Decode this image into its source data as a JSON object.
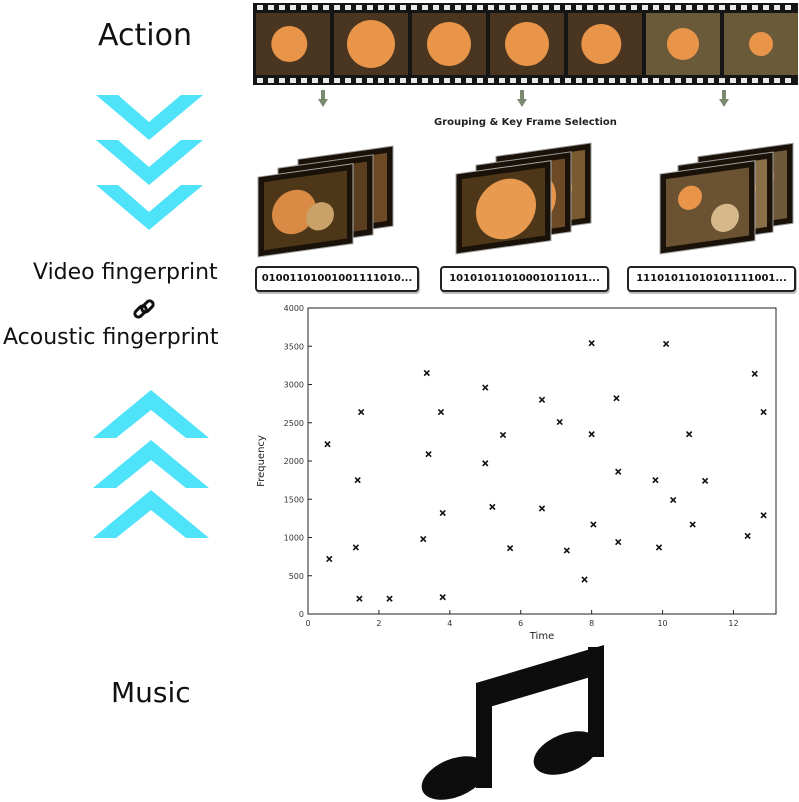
{
  "labels": {
    "action": "Action",
    "video_fingerprint": "Video fingerprint",
    "acoustic_fingerprint": "Acoustic fingerprint",
    "music": "Music"
  },
  "film": {
    "grouping_title": "Grouping & Key Frame Selection",
    "codes": [
      "01001101001001111010...",
      "10101011010001011011...",
      "11101011010101111001..."
    ]
  },
  "icons": {
    "down": "chevron-down-icon",
    "up": "chevron-up-icon",
    "link": "link-icon",
    "note": "music-note-icon"
  },
  "colors": {
    "chevron": "#4fe3fa",
    "frame_orange": "#e8954a",
    "frame_dark": "#3a2a18"
  },
  "chart_data": {
    "type": "scatter",
    "xlabel": "Time",
    "ylabel": "Frequency",
    "xlim": [
      0,
      13.2
    ],
    "ylim": [
      0,
      4000
    ],
    "xticks": [
      0,
      2,
      4,
      6,
      8,
      10,
      12
    ],
    "yticks": [
      0,
      500,
      1000,
      1500,
      2000,
      2500,
      3000,
      3500,
      4000
    ],
    "grid": false,
    "marker": "x",
    "points": [
      [
        0.55,
        2220
      ],
      [
        0.6,
        720
      ],
      [
        1.35,
        870
      ],
      [
        1.4,
        1750
      ],
      [
        1.45,
        200
      ],
      [
        1.5,
        2640
      ],
      [
        2.3,
        200
      ],
      [
        3.25,
        980
      ],
      [
        3.35,
        3150
      ],
      [
        3.4,
        2090
      ],
      [
        3.75,
        2640
      ],
      [
        3.8,
        1320
      ],
      [
        3.8,
        220
      ],
      [
        5.0,
        2960
      ],
      [
        5.0,
        1970
      ],
      [
        5.2,
        1400
      ],
      [
        5.5,
        2340
      ],
      [
        5.7,
        860
      ],
      [
        6.6,
        2800
      ],
      [
        6.6,
        1380
      ],
      [
        7.1,
        2510
      ],
      [
        7.3,
        830
      ],
      [
        7.8,
        450
      ],
      [
        8.0,
        3540
      ],
      [
        8.0,
        2350
      ],
      [
        8.05,
        1170
      ],
      [
        8.7,
        2820
      ],
      [
        8.75,
        1860
      ],
      [
        8.75,
        940
      ],
      [
        9.8,
        1750
      ],
      [
        9.9,
        870
      ],
      [
        10.1,
        3530
      ],
      [
        10.3,
        1490
      ],
      [
        10.75,
        2350
      ],
      [
        10.85,
        1170
      ],
      [
        11.2,
        1740
      ],
      [
        12.4,
        1020
      ],
      [
        12.6,
        3140
      ],
      [
        12.85,
        2640
      ],
      [
        12.85,
        1290
      ]
    ]
  }
}
